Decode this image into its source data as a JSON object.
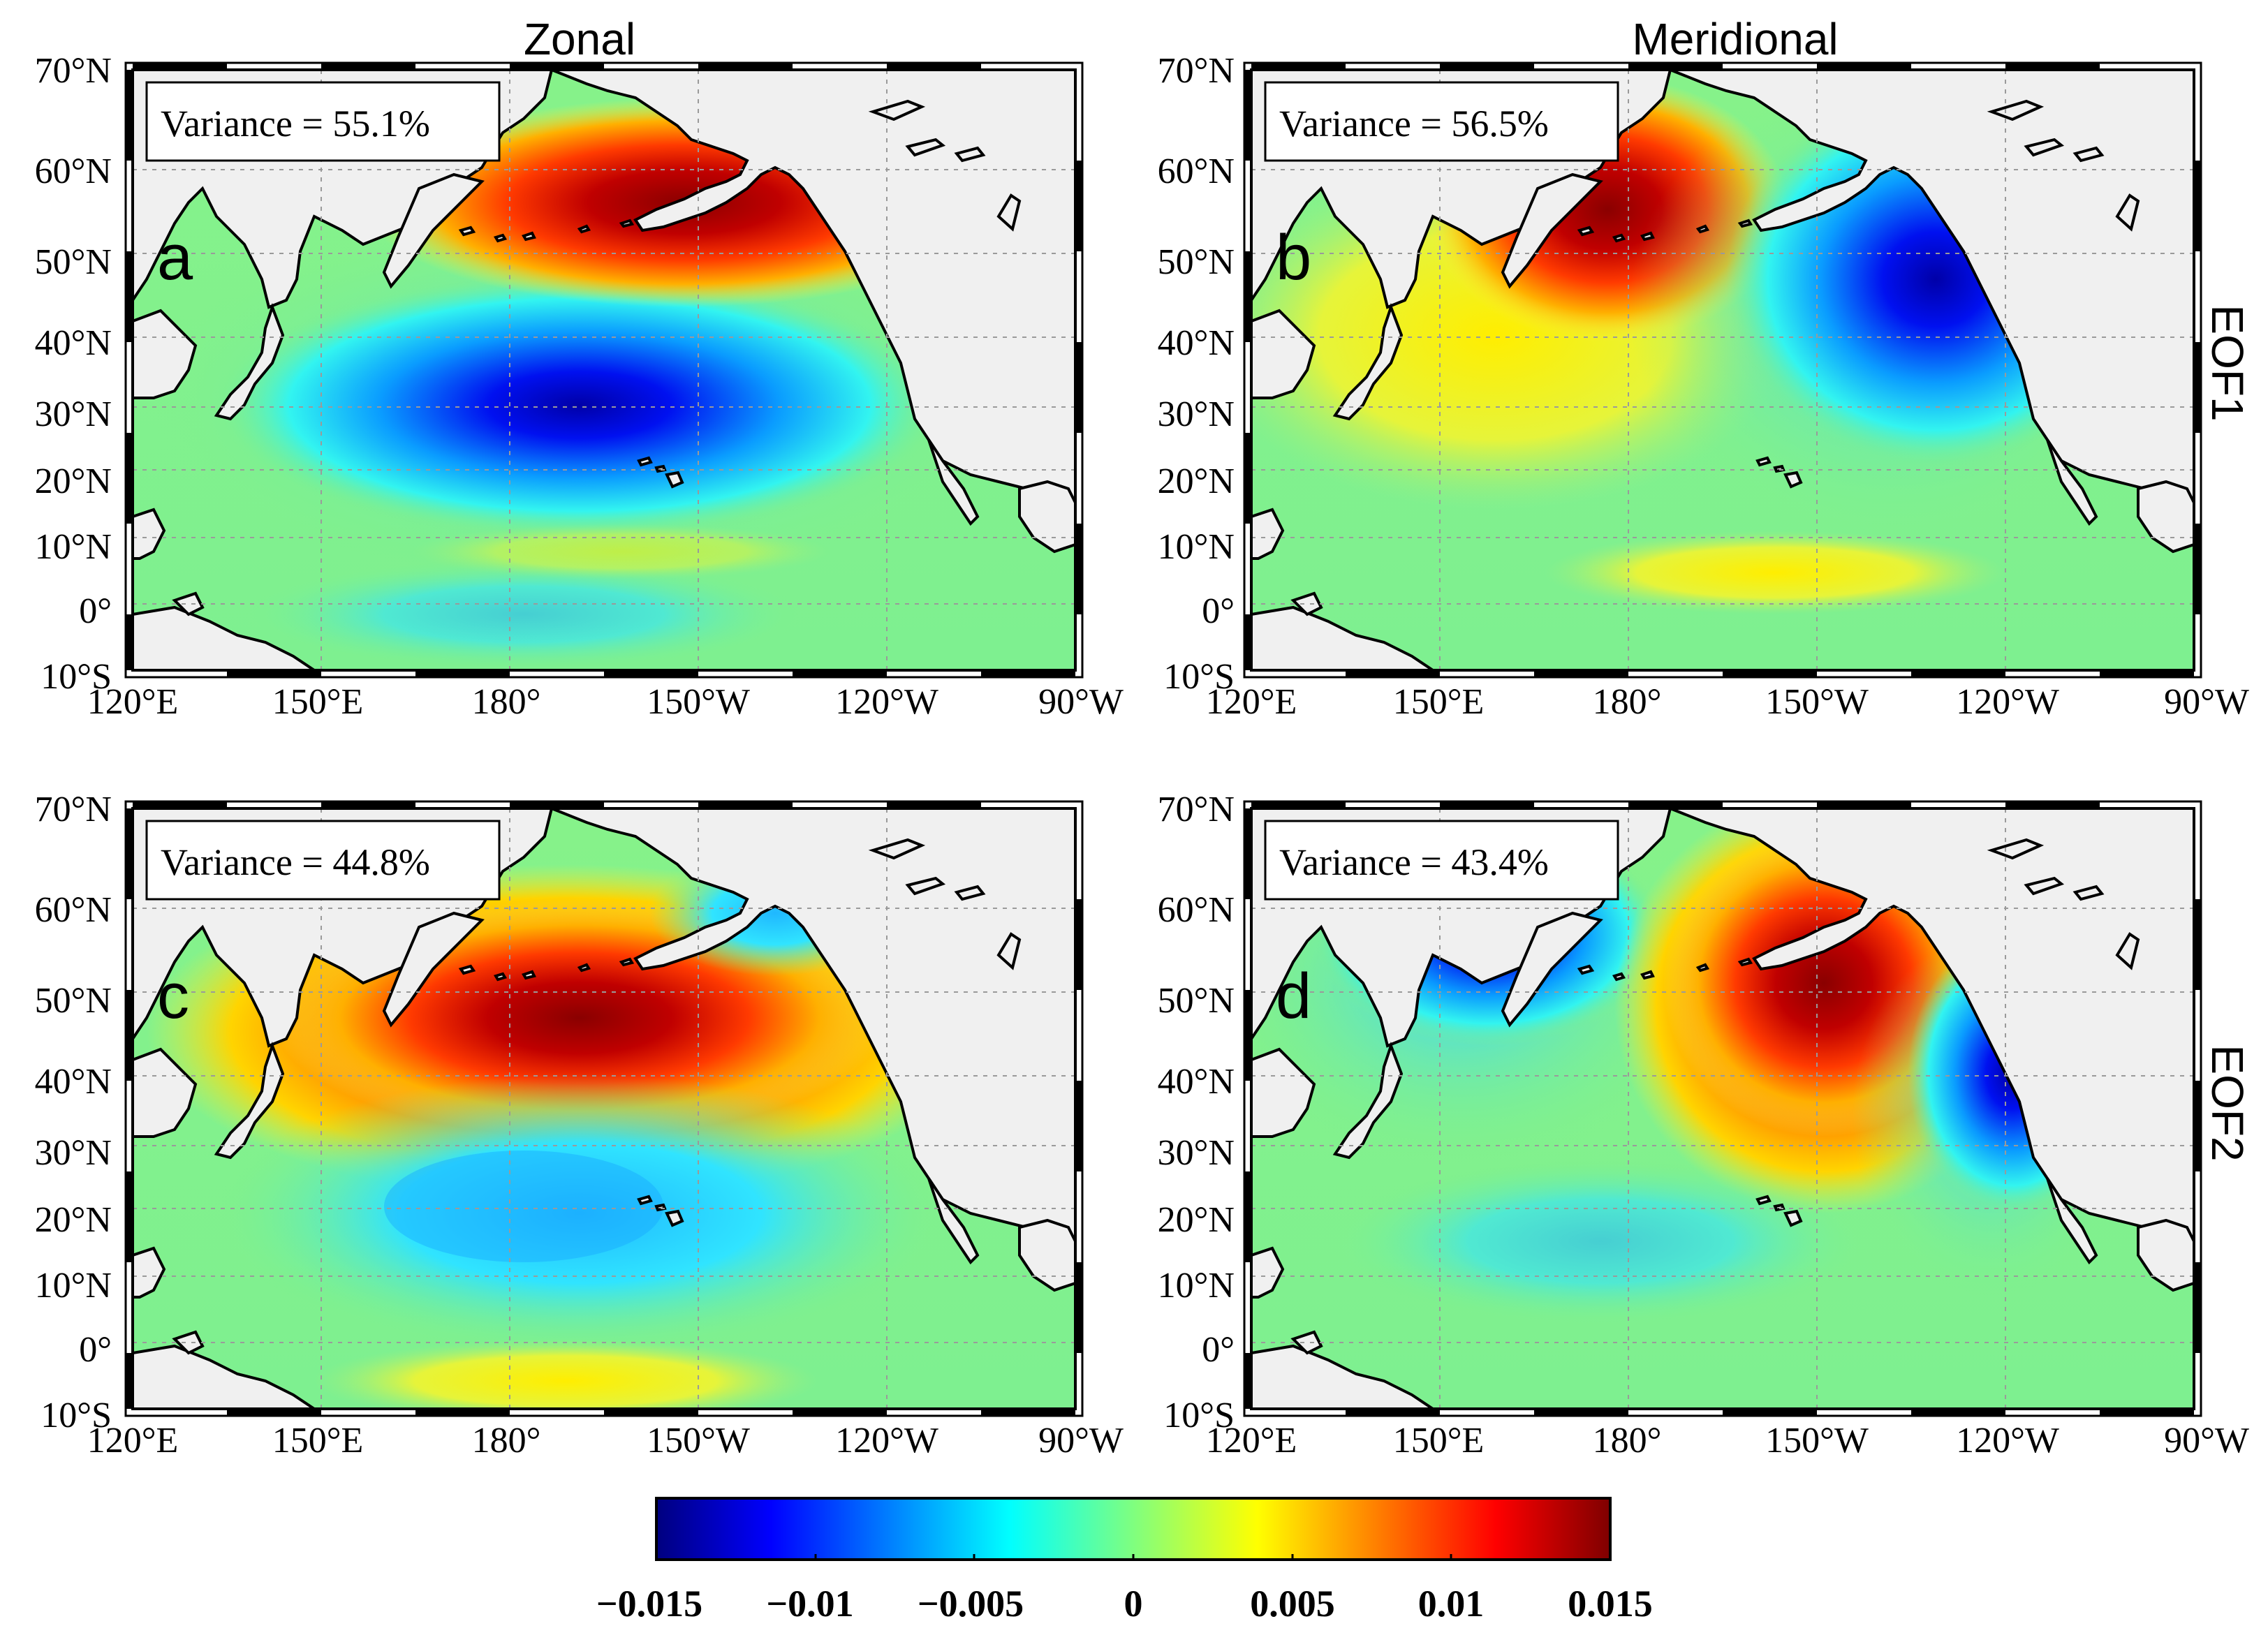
{
  "figure": {
    "col_titles": [
      "Zonal",
      "Meridional"
    ],
    "row_titles": [
      "EOF1",
      "EOF2"
    ],
    "lat_ticks": [
      "70°N",
      "60°N",
      "50°N",
      "40°N",
      "30°N",
      "20°N",
      "10°N",
      "0°",
      "10°S"
    ],
    "lon_ticks": [
      "120°E",
      "150°E",
      "180°",
      "150°W",
      "120°W",
      "90°W"
    ],
    "panels": [
      {
        "letter": "a",
        "variance": "Variance = 55.1%",
        "component": "Zonal",
        "mode": "EOF1"
      },
      {
        "letter": "b",
        "variance": "Variance = 56.5%",
        "component": "Meridional",
        "mode": "EOF1"
      },
      {
        "letter": "c",
        "variance": "Variance = 44.8%",
        "component": "Zonal",
        "mode": "EOF2"
      },
      {
        "letter": "d",
        "variance": "Variance = 43.4%",
        "component": "Meridional",
        "mode": "EOF2"
      }
    ],
    "colorbar": {
      "min": -0.015,
      "max": 0.015,
      "colormap": "jet",
      "tick_labels": [
        "−0.015",
        "−0.01",
        "−0.005",
        "0",
        "0.005",
        "0.01",
        "0.015"
      ]
    },
    "colors": {
      "land": "#f0f0f0",
      "coast": "#000000",
      "grid": "#9a9a9a"
    }
  }
}
